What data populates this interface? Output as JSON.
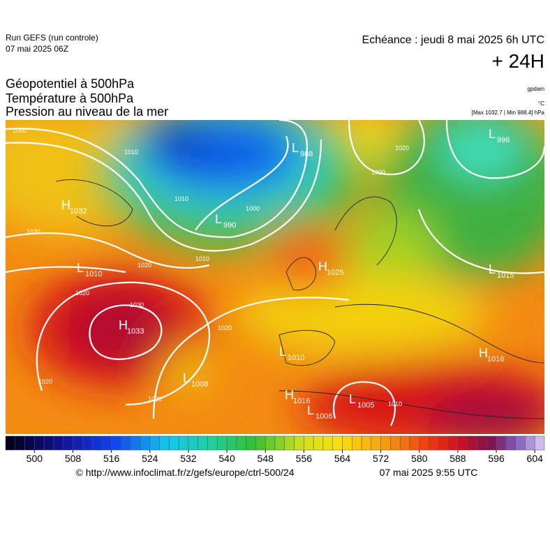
{
  "header": {
    "run": "Run GEFS (run controle)",
    "run_date": "07 mai 2025 06Z",
    "echeance": "Echéance : jeudi 8 mai 2025 6h UTC",
    "lead": "+ 24H"
  },
  "titles": [
    "Géopotentiel à 500hPa",
    "Température à 500hPa",
    "Pression au niveau de la mer"
  ],
  "units": {
    "geopotential": "gpdam",
    "temperature": "°C",
    "pressure": "[Max 1032.7 | Min 988.4] hPa"
  },
  "centers": [
    {
      "type": "H",
      "value": 1032
    },
    {
      "type": "L",
      "value": 988
    },
    {
      "type": "L",
      "value": 990
    },
    {
      "type": "H",
      "value": 1033
    },
    {
      "type": "L",
      "value": 1010
    },
    {
      "type": "H",
      "value": 1025
    },
    {
      "type": "L",
      "value": 1008
    },
    {
      "type": "L",
      "value": 1010
    },
    {
      "type": "H",
      "value": 1016
    },
    {
      "type": "L",
      "value": 1006
    },
    {
      "type": "L",
      "value": 1005
    },
    {
      "type": "H",
      "value": 1016
    },
    {
      "type": "L",
      "value": 996
    },
    {
      "type": "L",
      "value": 1015
    }
  ],
  "isobar_labels": [
    1000,
    1010,
    1030,
    1020,
    1020,
    1030,
    1020,
    1020,
    1020,
    1010,
    1000,
    1010,
    1020,
    1020,
    1010
  ],
  "colorbar": {
    "range": [
      494,
      606
    ],
    "ticks": [
      500,
      508,
      516,
      524,
      532,
      540,
      548,
      556,
      564,
      572,
      580,
      588,
      596,
      604
    ]
  },
  "footer": {
    "source": "© http://www.infoclimat.fr/z/gefs/europe/ctrl-500/24",
    "date": "07 mai 2025  9:55 UTC"
  }
}
